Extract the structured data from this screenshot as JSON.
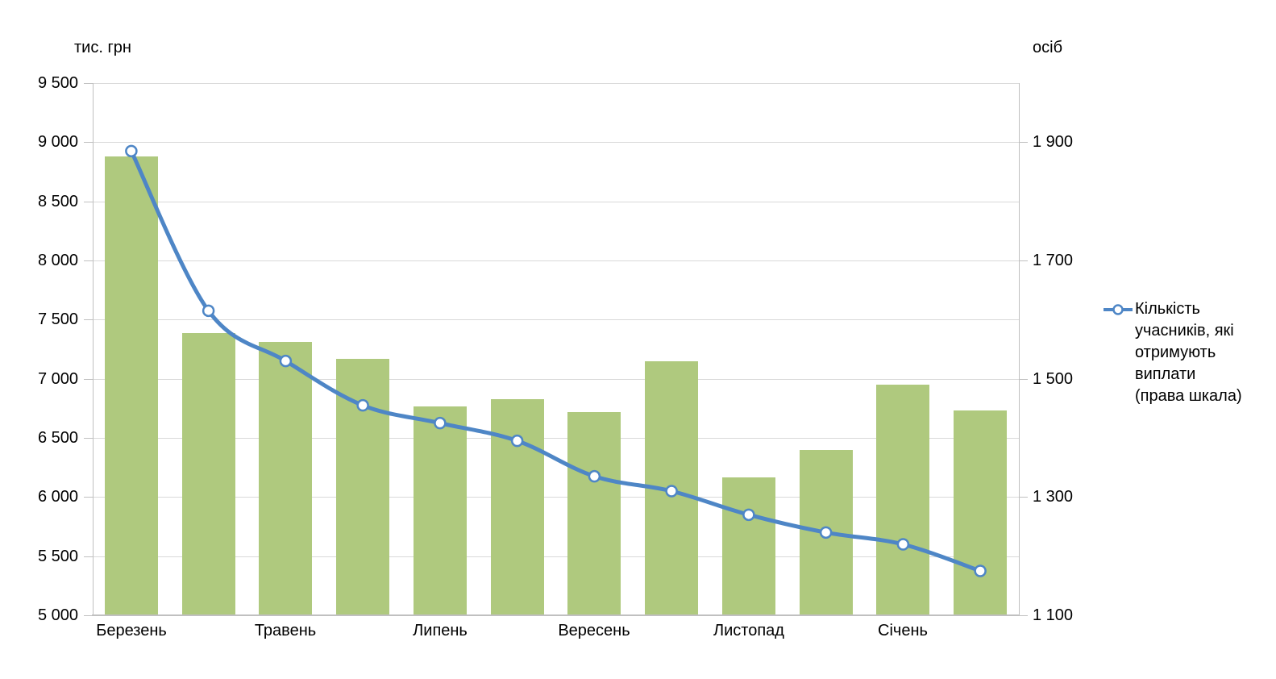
{
  "colors": {
    "background": "#FFFFFF",
    "bar": "#AFC97E",
    "line": "#4E86C6",
    "marker_fill": "#FFFFFF",
    "grid": "#D9D9D9",
    "axis": "#C0C0C0",
    "text": "#000000"
  },
  "legend": {
    "position": "right",
    "entries": [
      {
        "series_index": 1,
        "full_text": "Кількість учасників, які отримують виплати (права шкала)",
        "text_lines": [
          "Кількість",
          "учасників, які",
          "отримують",
          "виплати",
          "(права шкала)"
        ]
      }
    ]
  },
  "chart_data": {
    "type": "combo",
    "title": "",
    "grid": true,
    "categories": [
      "Березень",
      "",
      "Травень",
      "",
      "Липень",
      "",
      "Вересень",
      "",
      "Листопад",
      "",
      "Січень",
      ""
    ],
    "left_axis": {
      "label": "тис. грн",
      "lim": [
        5000,
        9500
      ],
      "major_step": 500,
      "ticks": [
        {
          "value": 9500,
          "label": "9 500"
        },
        {
          "value": 9000,
          "label": "9 000"
        },
        {
          "value": 8500,
          "label": "8 500"
        },
        {
          "value": 8000,
          "label": "8 000"
        },
        {
          "value": 7500,
          "label": "7 500"
        },
        {
          "value": 7000,
          "label": "7 000"
        },
        {
          "value": 6500,
          "label": "6 500"
        },
        {
          "value": 6000,
          "label": "6 000"
        },
        {
          "value": 5500,
          "label": "5 500"
        },
        {
          "value": 5000,
          "label": "5 000"
        }
      ]
    },
    "right_axis": {
      "label": "осіб",
      "lim": [
        1100,
        2000
      ],
      "label_step": 200,
      "ticks": [
        {
          "value": 1900,
          "label": "1 900"
        },
        {
          "value": 1700,
          "label": "1 700"
        },
        {
          "value": 1500,
          "label": "1 500"
        },
        {
          "value": 1300,
          "label": "1 300"
        },
        {
          "value": 1100,
          "label": "1 100"
        }
      ]
    },
    "series": [
      {
        "name": "",
        "type": "bar",
        "axis": "left",
        "values": [
          8880,
          7385,
          7310,
          7165,
          6765,
          6825,
          6720,
          7145,
          6165,
          6395,
          6950,
          6735
        ]
      },
      {
        "name": "Кількість учасників, які отримують виплати (права шкала)",
        "type": "line",
        "axis": "right",
        "marker": "open-circle",
        "values": [
          1885,
          1615,
          1530,
          1455,
          1425,
          1395,
          1335,
          1310,
          1270,
          1240,
          1220,
          1175
        ]
      }
    ]
  }
}
